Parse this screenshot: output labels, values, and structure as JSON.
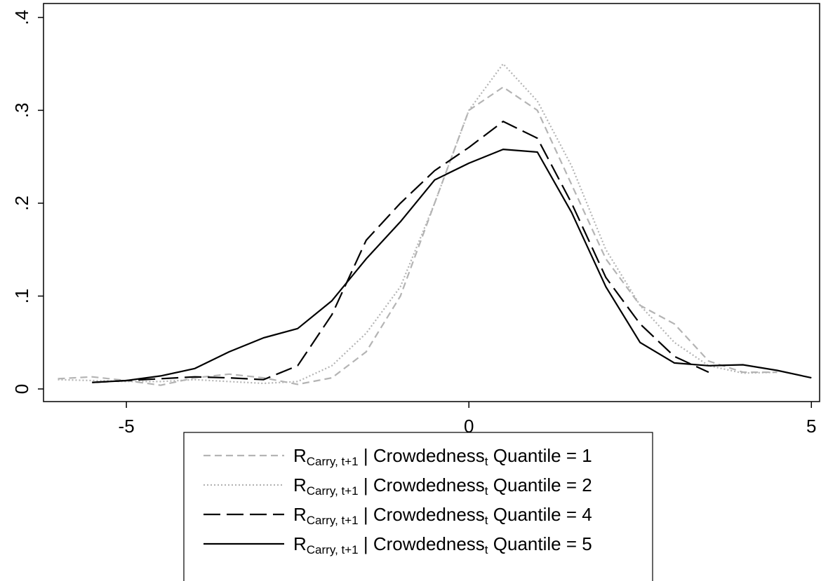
{
  "chart_data": {
    "type": "line",
    "x": [
      -6,
      -5.5,
      -5,
      -4.5,
      -4,
      -3.5,
      -3,
      -2.5,
      -2,
      -1.5,
      -1,
      -0.5,
      0,
      0.5,
      1,
      1.5,
      2,
      2.5,
      3,
      3.5,
      4,
      4.5,
      5
    ],
    "series": [
      {
        "name": [
          "R",
          "Carry, t+1",
          " | Crowdedness",
          "t",
          " Quantile = 1"
        ],
        "color": "#b4b4b4",
        "dash": "dash",
        "values": [
          0.011,
          0.013,
          0.009,
          0.004,
          0.012,
          0.016,
          0.012,
          0.005,
          0.012,
          0.04,
          0.1,
          0.2,
          0.3,
          0.325,
          0.3,
          0.22,
          0.14,
          0.09,
          0.07,
          0.03,
          0.018,
          0.018,
          null
        ]
      },
      {
        "name": [
          "R",
          "Carry, t+1",
          " | Crowdedness",
          "t",
          " Quantile = 2"
        ],
        "color": "#b4b4b4",
        "dash": "dot",
        "values": [
          0.01,
          0.009,
          0.008,
          0.008,
          0.01,
          0.008,
          0.006,
          0.008,
          0.025,
          0.06,
          0.11,
          0.2,
          0.3,
          0.35,
          0.31,
          0.24,
          0.15,
          0.09,
          0.05,
          0.025,
          0.017,
          0.018,
          null
        ]
      },
      {
        "name": [
          "R",
          "Carry, t+1",
          " | Crowdedness",
          "t",
          " Quantile = 4"
        ],
        "color": "#000000",
        "dash": "longdash",
        "values": [
          null,
          0.007,
          0.009,
          0.011,
          0.013,
          0.012,
          0.01,
          0.025,
          0.08,
          0.16,
          0.2,
          0.235,
          0.26,
          0.288,
          0.27,
          0.2,
          0.12,
          0.07,
          0.035,
          0.018,
          null,
          null,
          null
        ]
      },
      {
        "name": [
          "R",
          "Carry, t+1",
          " | Crowdedness",
          "t",
          " Quantile = 5"
        ],
        "color": "#000000",
        "dash": "solid",
        "values": [
          null,
          0.007,
          0.009,
          0.014,
          0.022,
          0.04,
          0.055,
          0.065,
          0.095,
          0.14,
          0.18,
          0.225,
          0.243,
          0.258,
          0.255,
          0.19,
          0.11,
          0.05,
          0.028,
          0.025,
          0.026,
          0.02,
          0.012
        ]
      }
    ],
    "xlim": [
      -6.21,
      5.12
    ],
    "ylim": [
      -0.0136,
      0.415
    ],
    "xticks": [
      -5,
      0,
      5
    ],
    "yticks": [
      0,
      {
        "value": 0.1,
        "label": ".1"
      },
      {
        "value": 0.2,
        "label": ".2"
      },
      {
        "value": 0.3,
        "label": ".3"
      },
      {
        "value": 0.4,
        "label": ".4"
      }
    ],
    "legend": "bottom"
  }
}
